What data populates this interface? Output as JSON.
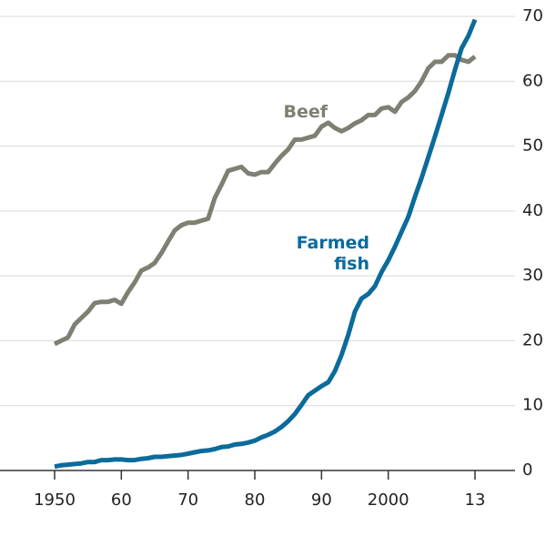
{
  "chart_data": {
    "type": "line",
    "x": [
      1950,
      1951,
      1952,
      1953,
      1954,
      1955,
      1956,
      1957,
      1958,
      1959,
      1960,
      1961,
      1962,
      1963,
      1964,
      1965,
      1966,
      1967,
      1968,
      1969,
      1970,
      1971,
      1972,
      1973,
      1974,
      1975,
      1976,
      1977,
      1978,
      1979,
      1980,
      1981,
      1982,
      1983,
      1984,
      1985,
      1986,
      1987,
      1988,
      1989,
      1990,
      1991,
      1992,
      1993,
      1994,
      1995,
      1996,
      1997,
      1998,
      1999,
      2000,
      2001,
      2002,
      2003,
      2004,
      2005,
      2006,
      2007,
      2008,
      2009,
      2010,
      2011,
      2012,
      2013
    ],
    "series": [
      {
        "name": "Beef",
        "color": "#7d8072",
        "values": [
          19.5,
          20,
          20.5,
          22.5,
          23.5,
          24.5,
          25.8,
          26,
          26,
          26.3,
          25.7,
          27.5,
          29,
          30.8,
          31.3,
          32,
          33.5,
          35.3,
          37,
          37.8,
          38.2,
          38.2,
          38.5,
          38.8,
          42,
          44,
          46.2,
          46.5,
          46.8,
          45.8,
          45.6,
          46,
          46,
          47.3,
          48.5,
          49.5,
          51,
          51,
          51.3,
          51.6,
          53,
          53.6,
          52.8,
          52.3,
          52.8,
          53.5,
          54,
          54.8,
          54.8,
          55.8,
          56,
          55.3,
          56.8,
          57.5,
          58.5,
          60,
          62,
          63,
          63,
          64,
          64,
          63.3,
          63,
          63.8
        ]
      },
      {
        "name": "Farmed fish",
        "color": "#0b6b9b",
        "values": [
          0.6,
          0.8,
          0.9,
          1.0,
          1.1,
          1.3,
          1.3,
          1.6,
          1.6,
          1.7,
          1.7,
          1.6,
          1.6,
          1.8,
          1.9,
          2.1,
          2.1,
          2.2,
          2.3,
          2.4,
          2.6,
          2.8,
          3.0,
          3.1,
          3.3,
          3.6,
          3.7,
          4.0,
          4.1,
          4.3,
          4.6,
          5.1,
          5.5,
          6.0,
          6.7,
          7.6,
          8.7,
          10.1,
          11.6,
          12.3,
          13.0,
          13.6,
          15.3,
          17.8,
          20.9,
          24.5,
          26.5,
          27.2,
          28.4,
          30.6,
          32.4,
          34.5,
          36.8,
          39.1,
          42.2,
          45.1,
          48.3,
          51.5,
          54.8,
          58.2,
          61.8,
          65.1,
          67.0,
          69.5
        ]
      }
    ],
    "xlim": [
      1950,
      2013
    ],
    "xticks": [
      {
        "value": 1950,
        "label": "1950"
      },
      {
        "value": 1960,
        "label": "60"
      },
      {
        "value": 1970,
        "label": "70"
      },
      {
        "value": 1980,
        "label": "80"
      },
      {
        "value": 1990,
        "label": "90"
      },
      {
        "value": 2000,
        "label": "2000"
      },
      {
        "value": 2013,
        "label": "13"
      }
    ],
    "ylim": [
      0,
      70
    ],
    "yticks": [
      0,
      10,
      20,
      30,
      40,
      50,
      60,
      70
    ],
    "grid": true,
    "y_axis_side": "right"
  }
}
